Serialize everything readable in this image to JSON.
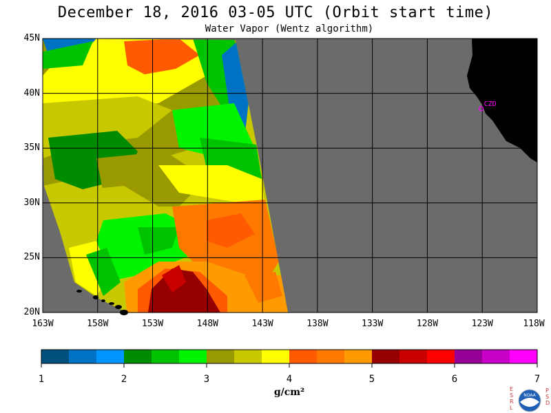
{
  "title": "December 18, 2016  03-05 UTC  (Orbit start time)",
  "subtitle": "Water Vapor (Wentz algorithm)",
  "map": {
    "lon_range": [
      -163,
      -118
    ],
    "lat_range": [
      20,
      45
    ],
    "lat_ticks": [
      {
        "value": 45,
        "label": "45N"
      },
      {
        "value": 40,
        "label": "40N"
      },
      {
        "value": 35,
        "label": "35N"
      },
      {
        "value": 30,
        "label": "30N"
      },
      {
        "value": 25,
        "label": "25N"
      },
      {
        "value": 20,
        "label": "20N"
      }
    ],
    "lon_ticks": [
      {
        "value": -163,
        "label": "163W"
      },
      {
        "value": -158,
        "label": "158W"
      },
      {
        "value": -153,
        "label": "153W"
      },
      {
        "value": -148,
        "label": "148W"
      },
      {
        "value": -143,
        "label": "143W"
      },
      {
        "value": -138,
        "label": "138W"
      },
      {
        "value": -133,
        "label": "133W"
      },
      {
        "value": -128,
        "label": "128W"
      },
      {
        "value": -123,
        "label": "123W"
      },
      {
        "value": -118,
        "label": "118W"
      }
    ],
    "station": {
      "label": "CZD",
      "lon": -123.1,
      "lat": 38.6,
      "color": "#ff00ff"
    },
    "colors": {
      "nodata": "#6b6b6b",
      "land": "#000000",
      "grid": "#000000"
    }
  },
  "colorbar": {
    "ticks": [
      "1",
      "2",
      "3",
      "4",
      "5",
      "6",
      "7"
    ],
    "units": "g/cm²",
    "colors": [
      "#00507f",
      "#0072c4",
      "#0096ff",
      "#008c00",
      "#00c300",
      "#00f300",
      "#999900",
      "#c8c800",
      "#ffff00",
      "#ff5a00",
      "#ff7800",
      "#ff9b00",
      "#960000",
      "#c80000",
      "#ff0000",
      "#960096",
      "#c800c8",
      "#ff00ff"
    ]
  },
  "logo": {
    "left_letters": "ESRL",
    "right_letters": "PSD",
    "center_text": "NOAA"
  }
}
